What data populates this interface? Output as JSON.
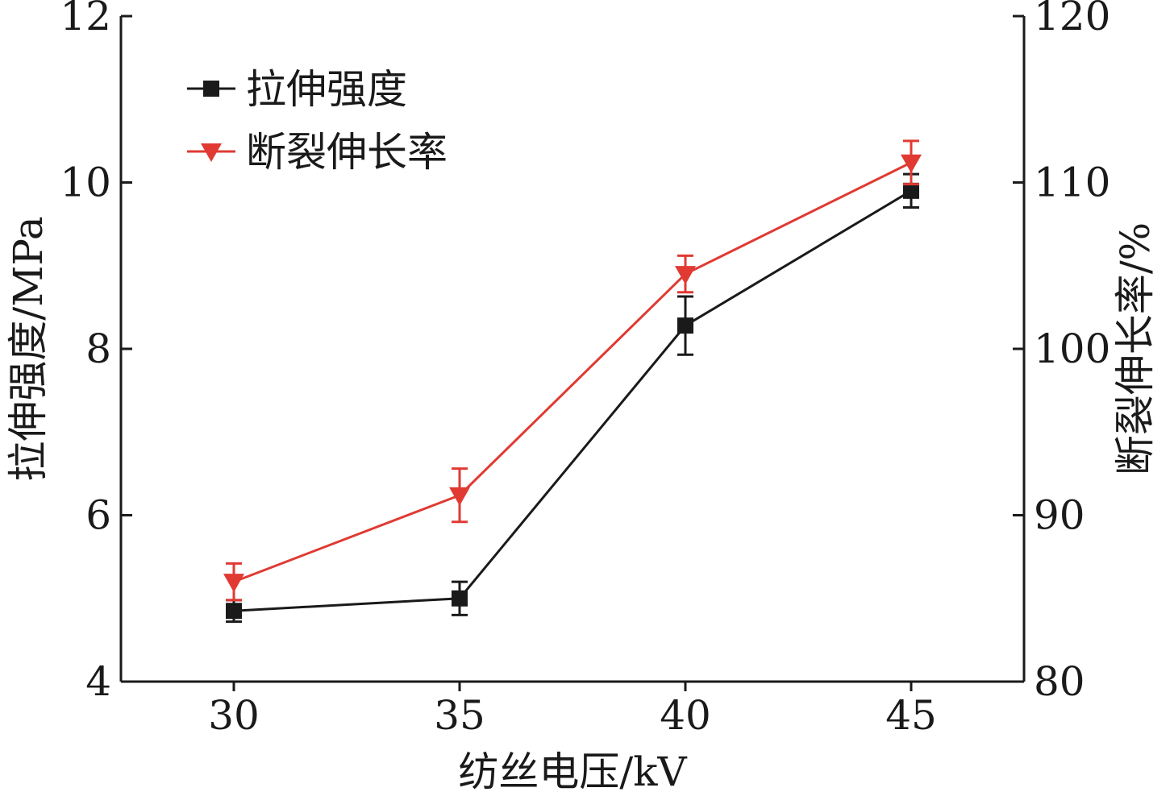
{
  "chart_data": {
    "type": "line",
    "x": [
      30,
      35,
      40,
      45
    ],
    "x_ticks": [
      "30",
      "35",
      "40",
      "45"
    ],
    "xlabel": "纺丝电压/kV",
    "xlim": [
      27.5,
      47.5
    ],
    "ylabel_left": "拉伸强度/MPa",
    "ylim_left": [
      4,
      12
    ],
    "yticks_left": [
      "4",
      "6",
      "8",
      "10",
      "12"
    ],
    "ylabel_right": "断裂伸长率/%",
    "ylim_right": [
      80,
      120
    ],
    "yticks_right": [
      "80",
      "90",
      "100",
      "110",
      "120"
    ],
    "grid": false,
    "legend_position": "top-left",
    "series": [
      {
        "name": "拉伸强度",
        "axis": "left",
        "color": "#1a1a1a",
        "marker": "square",
        "values": [
          4.85,
          5.0,
          8.28,
          9.9
        ],
        "errors": [
          0.13,
          0.2,
          0.35,
          0.2
        ]
      },
      {
        "name": "断裂伸长率",
        "axis": "right",
        "color": "#e03a33",
        "marker": "triangle-down",
        "values": [
          86.0,
          91.2,
          104.5,
          111.2
        ],
        "errors": [
          1.1,
          1.6,
          1.1,
          1.3
        ]
      }
    ]
  }
}
